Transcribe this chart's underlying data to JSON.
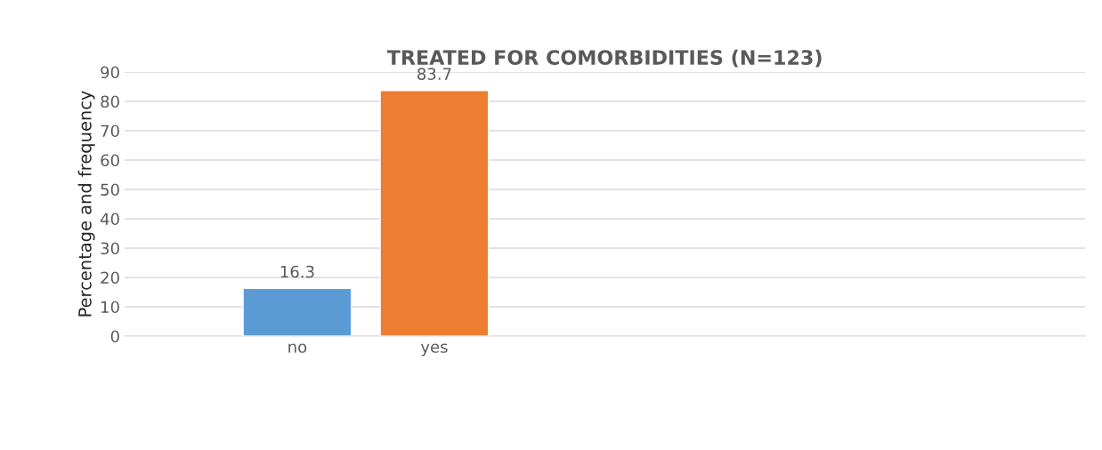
{
  "chart_data": {
    "type": "bar",
    "title": "TREATED FOR COMORBIDITIES (N=123)",
    "ylabel": "Percentage and frequency",
    "categories": [
      "no",
      "yes"
    ],
    "values": [
      16.3,
      83.7
    ],
    "colors": [
      "#5b9bd5",
      "#ed7d31"
    ],
    "ylim": [
      0,
      90
    ],
    "yticks": [
      0,
      10,
      20,
      30,
      40,
      50,
      60,
      70,
      80,
      90
    ],
    "grid": "y",
    "data_labels": true
  }
}
